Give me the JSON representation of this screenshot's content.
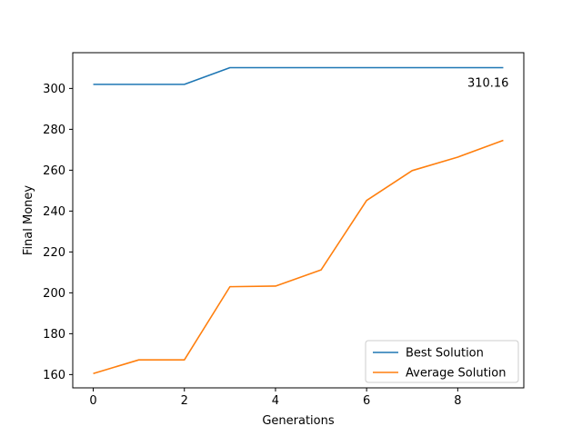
{
  "chart_data": {
    "type": "line",
    "title": "",
    "xlabel": "Generations",
    "ylabel": "Final Money",
    "x": [
      0,
      1,
      2,
      3,
      4,
      5,
      6,
      7,
      8,
      9
    ],
    "xlim": [
      -0.45,
      9.45
    ],
    "ylim": [
      153.5,
      317.5
    ],
    "xticks": [
      0,
      2,
      4,
      6,
      8
    ],
    "yticks": [
      160,
      180,
      200,
      220,
      240,
      260,
      280,
      300
    ],
    "grid": false,
    "legend_position": "lower-right",
    "series": [
      {
        "name": "Best Solution",
        "color": "#1f77b4",
        "values": [
          302.0,
          302.0,
          302.0,
          310.16,
          310.16,
          310.16,
          310.16,
          310.16,
          310.16,
          310.16
        ]
      },
      {
        "name": "Average Solution",
        "color": "#ff7f0e",
        "values": [
          160.5,
          167.2,
          167.2,
          203.0,
          203.3,
          211.2,
          245.2,
          259.8,
          266.4,
          274.6
        ]
      }
    ],
    "annotations": [
      {
        "text": "310.16",
        "x": 9,
        "y": 310.16
      }
    ]
  }
}
